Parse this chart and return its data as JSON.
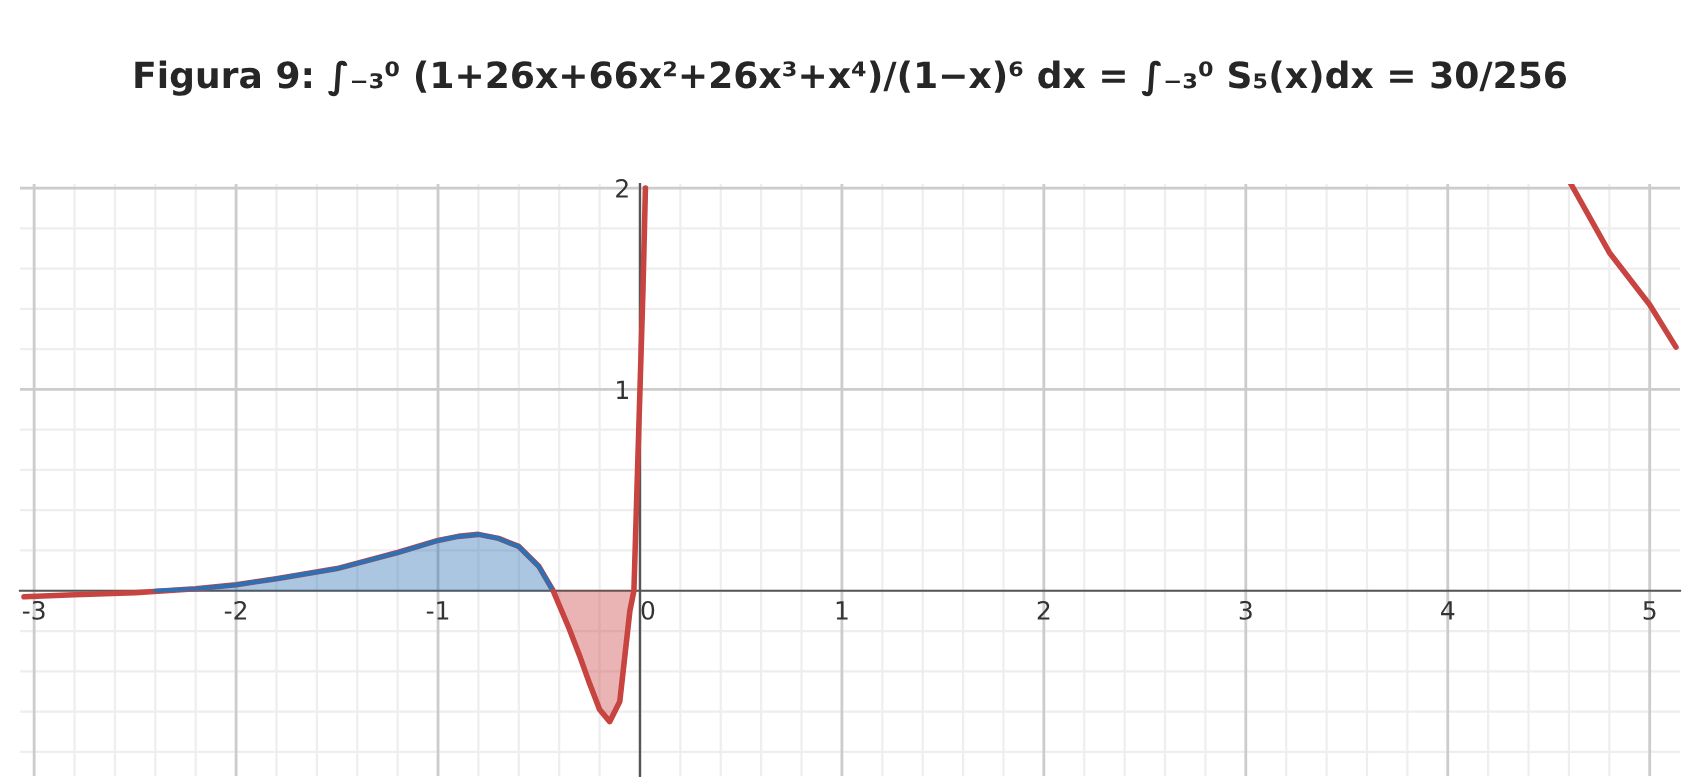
{
  "chart_data": {
    "type": "line",
    "title": "Figura 9: ∫₋₃⁰ (1+26x+66x²+26x³+x⁴)/(1−x)⁶ dx = ∫₋₃⁰ S₅(x)dx = 30/256",
    "series": [
      {
        "color": "#c74440",
        "x": [
          -3.05,
          -2.8,
          -2.5,
          -2.2,
          -2.0,
          -1.8,
          -1.5,
          -1.2,
          -1.0,
          -0.9,
          -0.8,
          -0.7,
          -0.6,
          -0.5,
          -0.43,
          -0.35,
          -0.3,
          -0.25,
          -0.2,
          -0.15,
          -0.1,
          -0.05,
          -0.03,
          0.0,
          0.015,
          0.027,
          1.0,
          4.61,
          4.8,
          5.0,
          5.13
        ],
        "values": [
          -0.03,
          -0.02,
          -0.01,
          0.01,
          0.03,
          0.06,
          0.11,
          0.19,
          0.25,
          0.27,
          0.28,
          0.26,
          0.22,
          0.12,
          0.0,
          -0.19,
          -0.32,
          -0.46,
          -0.59,
          -0.65,
          -0.55,
          -0.1,
          0.0,
          1.0,
          1.5,
          2.0,
          null,
          2.02,
          1.68,
          1.42,
          1.21
        ]
      },
      {
        "type": "area",
        "color": "#2d70b3",
        "x": [
          -2.4,
          -2.2,
          -2.0,
          -1.8,
          -1.5,
          -1.2,
          -1.0,
          -0.9,
          -0.8,
          -0.7,
          -0.6,
          -0.5,
          -0.43
        ],
        "values": [
          0.0,
          0.01,
          0.03,
          0.06,
          0.11,
          0.19,
          0.25,
          0.27,
          0.28,
          0.26,
          0.22,
          0.12,
          0.0
        ]
      },
      {
        "type": "area",
        "color": "#c74440",
        "x": [
          -0.43,
          -0.35,
          -0.3,
          -0.25,
          -0.2,
          -0.15,
          -0.1,
          -0.05,
          -0.03
        ],
        "values": [
          0.0,
          -0.19,
          -0.32,
          -0.46,
          -0.59,
          -0.65,
          -0.55,
          -0.1,
          0.0
        ]
      }
    ],
    "xlim": [
      -3.07,
      5.15
    ],
    "ylim": [
      -0.92,
      2.02
    ],
    "xticks": [
      -3,
      -2,
      -1,
      0,
      1,
      2,
      3,
      4,
      5
    ],
    "yticks": [
      1,
      2
    ],
    "grid": true
  }
}
